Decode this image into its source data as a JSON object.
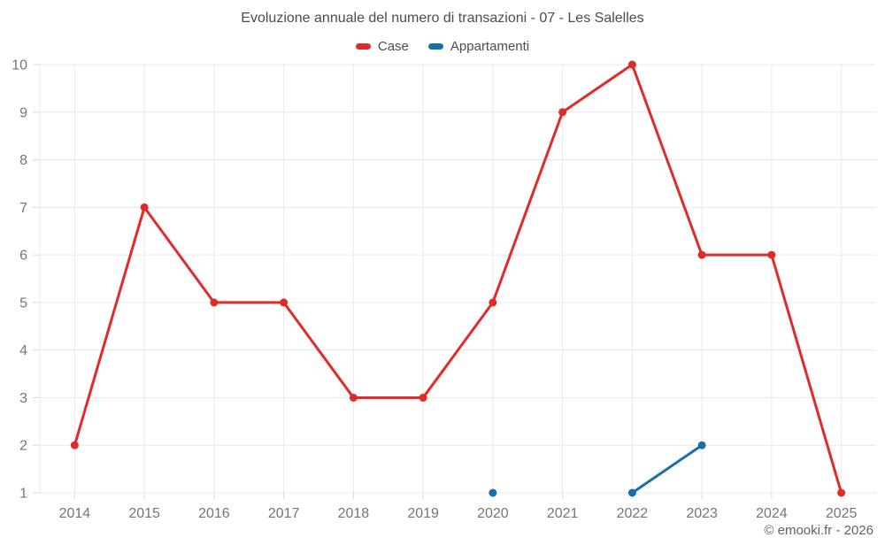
{
  "watermark": "© emooki.fr - 2026",
  "colors": {
    "grid": "#e9e9e9",
    "tick": "#d9d9d9",
    "axis_text": "#757575",
    "title_text": "#4d4d4d",
    "legend_text": "#4d4d4d",
    "watermark_text": "#5f6468",
    "background": "#ffffff"
  },
  "chart_data": {
    "type": "line",
    "title": "Evoluzione annuale del numero di transazioni - 07 - Les Salelles",
    "categories": [
      "2014",
      "2015",
      "2016",
      "2017",
      "2018",
      "2019",
      "2020",
      "2021",
      "2022",
      "2023",
      "2024",
      "2025"
    ],
    "series": [
      {
        "name": "Case",
        "color": "#e02b2b",
        "values": [
          2,
          7,
          5,
          5,
          3,
          3,
          5,
          9,
          10,
          6,
          6,
          1
        ]
      },
      {
        "name": "Appartamenti",
        "color": "#1a6fa4",
        "values": [
          null,
          null,
          null,
          null,
          null,
          null,
          1,
          null,
          1,
          2,
          null,
          null
        ]
      }
    ],
    "ylim": [
      1,
      10
    ],
    "ytick_step": 1,
    "xlabel": "",
    "ylabel": "",
    "grid": true,
    "legend_position": "top",
    "marker_radius": 4.5,
    "line_width": 3
  }
}
